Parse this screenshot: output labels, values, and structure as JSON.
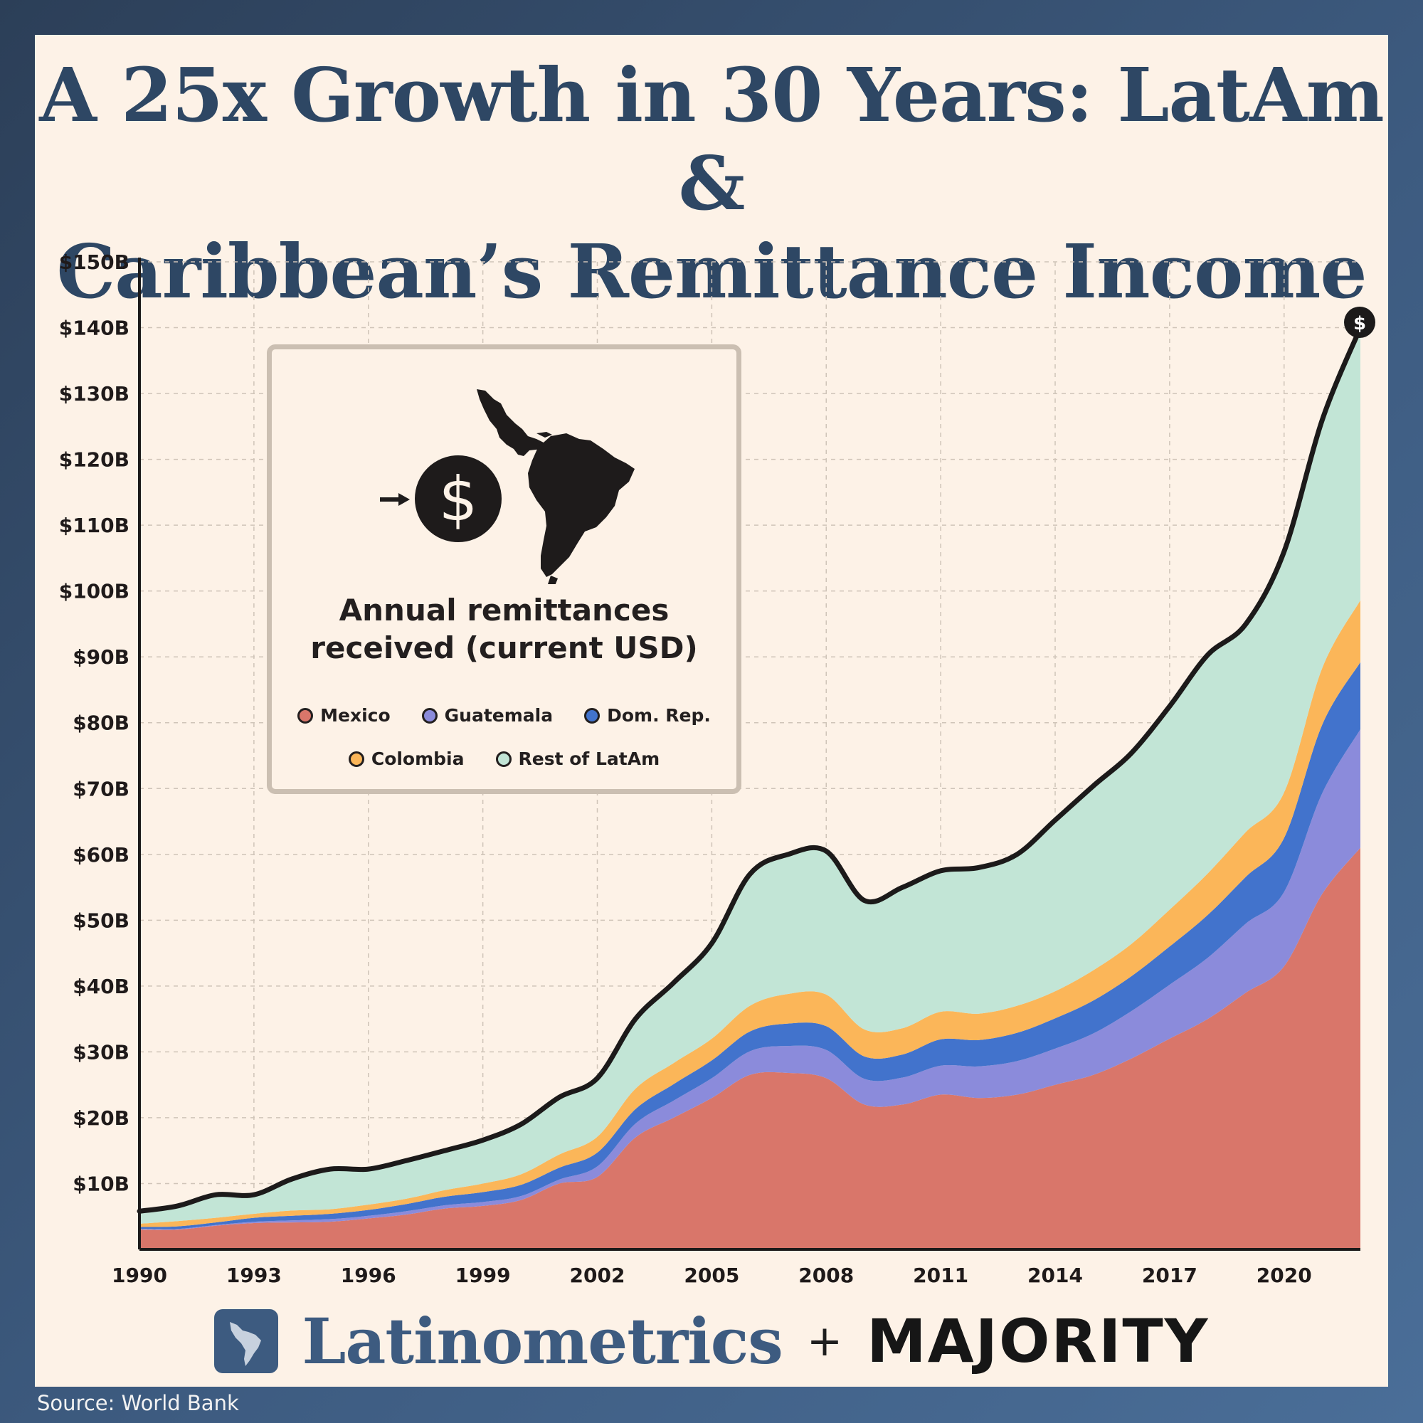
{
  "title": {
    "line1": "A 25x Growth in 30 Years: LatAm &",
    "line2": "Caribbean’s Remittance Income"
  },
  "legend": {
    "title_line1": "Annual remittances",
    "title_line2": "received (current USD)",
    "items": [
      "Mexico",
      "Guatemala",
      "Dom. Rep.",
      "Colombia",
      "Rest of LatAm"
    ]
  },
  "branding": {
    "latinometrics": "Latinometrics",
    "plus": "+",
    "majority": "MAJORITY"
  },
  "source": "Source: World Bank",
  "colors": {
    "Mexico": "#d9766a",
    "Guatemala": "#8b8bdb",
    "Dom. Rep.": "#4273cc",
    "Colombia": "#fbb659",
    "Rest of LatAm": "#c2e5d6",
    "total_line": "#1c1a1a",
    "title": "#2e4764",
    "card_background": "#fdf2e7"
  },
  "icons": [
    "dollar-coin-icon",
    "latin-america-map-icon",
    "arrow-right-icon",
    "dollar-marker-icon"
  ],
  "chart_data": {
    "type": "area",
    "stacked": true,
    "xlabel": "",
    "ylabel": "",
    "ylim": [
      0,
      150
    ],
    "xlim": [
      1990,
      2022
    ],
    "yticks": [
      10,
      20,
      30,
      40,
      50,
      60,
      70,
      80,
      90,
      100,
      110,
      120,
      130,
      140,
      150
    ],
    "ytick_labels": [
      "$10B",
      "$20B",
      "$30B",
      "$40B",
      "$50B",
      "$60B",
      "$70B",
      "$80B",
      "$90B",
      "$100B",
      "$110B",
      "$120B",
      "$130B",
      "$140B",
      "$150B"
    ],
    "xticks": [
      1990,
      1993,
      1996,
      1999,
      2002,
      2005,
      2008,
      2011,
      2014,
      2017,
      2020
    ],
    "grid": true,
    "legend_position": "upper-left inset",
    "x": [
      1990,
      1991,
      1992,
      1993,
      1994,
      1995,
      1996,
      1997,
      1998,
      1999,
      2000,
      2001,
      2002,
      2003,
      2004,
      2005,
      2006,
      2007,
      2008,
      2009,
      2010,
      2011,
      2012,
      2013,
      2014,
      2015,
      2016,
      2017,
      2018,
      2019,
      2020,
      2021,
      2022
    ],
    "series": [
      {
        "name": "Mexico",
        "values": [
          3.0,
          3.0,
          3.6,
          4.0,
          4.1,
          4.2,
          4.7,
          5.3,
          6.2,
          6.6,
          7.5,
          10.0,
          11.0,
          17.0,
          20.0,
          23.0,
          26.5,
          26.8,
          26.0,
          22.0,
          22.0,
          23.5,
          23.0,
          23.5,
          25.0,
          26.5,
          29.0,
          32.0,
          35.0,
          39.0,
          43.0,
          54.0,
          61.0
        ]
      },
      {
        "name": "Guatemala",
        "values": [
          0.1,
          0.1,
          0.1,
          0.2,
          0.3,
          0.4,
          0.4,
          0.5,
          0.5,
          0.6,
          0.6,
          0.6,
          1.6,
          2.1,
          2.6,
          3.0,
          3.6,
          4.1,
          4.3,
          3.9,
          4.1,
          4.4,
          4.8,
          5.1,
          5.5,
          6.3,
          7.2,
          8.2,
          9.3,
          10.5,
          11.3,
          15.3,
          18.0
        ]
      },
      {
        "name": "Dom. Rep.",
        "values": [
          0.3,
          0.4,
          0.4,
          0.6,
          0.7,
          0.8,
          0.9,
          1.1,
          1.3,
          1.5,
          1.7,
          1.8,
          2.1,
          2.2,
          2.5,
          2.7,
          3.0,
          3.4,
          3.6,
          3.4,
          3.5,
          4.0,
          4.0,
          4.3,
          4.6,
          5.0,
          5.3,
          5.8,
          6.5,
          7.1,
          8.2,
          10.4,
          10.2
        ]
      },
      {
        "name": "Colombia",
        "values": [
          0.5,
          0.8,
          0.7,
          0.6,
          0.8,
          0.7,
          0.8,
          0.8,
          1.0,
          1.3,
          1.6,
          2.0,
          2.4,
          3.1,
          3.2,
          3.3,
          3.9,
          4.5,
          4.8,
          4.1,
          4.0,
          4.2,
          4.0,
          4.1,
          4.1,
          4.6,
          4.9,
          5.6,
          6.3,
          6.8,
          6.9,
          8.6,
          9.4
        ]
      },
      {
        "name": "Rest of LatAm",
        "values": [
          1.9,
          2.3,
          3.5,
          2.9,
          4.8,
          6.1,
          5.4,
          5.8,
          6.0,
          6.6,
          7.6,
          8.7,
          8.9,
          10.6,
          12.2,
          14.5,
          20.0,
          21.2,
          21.8,
          19.6,
          21.4,
          21.4,
          22.2,
          23.0,
          26.0,
          28.0,
          29.0,
          30.9,
          33.2,
          31.6,
          36.6,
          37.7,
          41.4
        ]
      }
    ]
  }
}
